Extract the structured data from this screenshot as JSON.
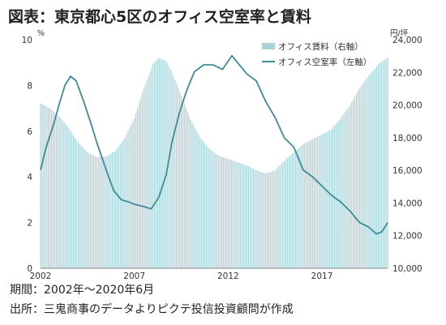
{
  "title": "図表：東京都心5区のオフィス空室率と賃料",
  "footer": {
    "period": "期間：2002年～2020年6月",
    "source": "出所：三鬼商事のデータよりピクテ投信投資顧問が作成"
  },
  "colors": {
    "rent_bars": "#a9d2d8",
    "vacancy_line": "#3e8c98",
    "axis": "#888888"
  },
  "chart_data": {
    "type": "bar+line",
    "left_axis": {
      "unit": "%",
      "ylim": [
        0,
        10
      ],
      "ticks": [
        0,
        2,
        4,
        6,
        8,
        10
      ]
    },
    "right_axis": {
      "unit": "円/坪",
      "ylim": [
        10000,
        24000
      ],
      "ticks": [
        "10,000",
        "12,000",
        "14,000",
        "16,000",
        "18,000",
        "20,000",
        "22,000",
        "24,000"
      ],
      "tick_values": [
        10000,
        12000,
        14000,
        16000,
        18000,
        20000,
        22000,
        24000
      ]
    },
    "x_ticks": [
      "2002",
      "2007",
      "2012",
      "2017"
    ],
    "x_tick_values": [
      2002,
      2007,
      2012,
      2017
    ],
    "xlim": [
      2002,
      2020.5
    ],
    "legend": "top-right",
    "series": [
      {
        "name": "オフィス賃料（右軸）",
        "kind": "bar",
        "axis": "right",
        "points": [
          [
            2002.0,
            20100
          ],
          [
            2002.5,
            19800
          ],
          [
            2003.0,
            19300
          ],
          [
            2003.5,
            18600
          ],
          [
            2004.0,
            17700
          ],
          [
            2004.5,
            17100
          ],
          [
            2005.0,
            16800
          ],
          [
            2005.5,
            16850
          ],
          [
            2006.0,
            17200
          ],
          [
            2006.5,
            18000
          ],
          [
            2007.0,
            19200
          ],
          [
            2007.5,
            21000
          ],
          [
            2008.0,
            22500
          ],
          [
            2008.3,
            22900
          ],
          [
            2008.7,
            22700
          ],
          [
            2009.0,
            22000
          ],
          [
            2009.5,
            20600
          ],
          [
            2010.0,
            19100
          ],
          [
            2010.5,
            18000
          ],
          [
            2011.0,
            17300
          ],
          [
            2011.5,
            16900
          ],
          [
            2012.0,
            16700
          ],
          [
            2012.5,
            16500
          ],
          [
            2013.0,
            16300
          ],
          [
            2013.5,
            16000
          ],
          [
            2014.0,
            15800
          ],
          [
            2014.5,
            16000
          ],
          [
            2015.0,
            16600
          ],
          [
            2015.5,
            17100
          ],
          [
            2016.0,
            17600
          ],
          [
            2016.5,
            17900
          ],
          [
            2017.0,
            18200
          ],
          [
            2017.5,
            18500
          ],
          [
            2018.0,
            19200
          ],
          [
            2018.5,
            20000
          ],
          [
            2019.0,
            21000
          ],
          [
            2019.5,
            21800
          ],
          [
            2020.0,
            22500
          ],
          [
            2020.5,
            22900
          ]
        ]
      },
      {
        "name": "オフィス空室率（左軸）",
        "kind": "line",
        "axis": "left",
        "points": [
          [
            2002.0,
            4.3
          ],
          [
            2002.3,
            5.3
          ],
          [
            2002.7,
            6.3
          ],
          [
            2003.0,
            7.2
          ],
          [
            2003.3,
            8.0
          ],
          [
            2003.6,
            8.4
          ],
          [
            2003.9,
            8.2
          ],
          [
            2004.3,
            7.3
          ],
          [
            2004.7,
            6.3
          ],
          [
            2005.0,
            5.5
          ],
          [
            2005.5,
            4.3
          ],
          [
            2005.9,
            3.4
          ],
          [
            2006.3,
            3.0
          ],
          [
            2006.7,
            2.9
          ],
          [
            2007.0,
            2.8
          ],
          [
            2007.5,
            2.7
          ],
          [
            2007.9,
            2.6
          ],
          [
            2008.3,
            3.1
          ],
          [
            2008.7,
            4.1
          ],
          [
            2009.0,
            5.5
          ],
          [
            2009.4,
            6.8
          ],
          [
            2009.8,
            7.8
          ],
          [
            2010.2,
            8.6
          ],
          [
            2010.7,
            8.9
          ],
          [
            2011.2,
            8.9
          ],
          [
            2011.7,
            8.7
          ],
          [
            2012.2,
            9.3
          ],
          [
            2012.6,
            8.9
          ],
          [
            2013.0,
            8.5
          ],
          [
            2013.5,
            8.2
          ],
          [
            2014.0,
            7.3
          ],
          [
            2014.5,
            6.6
          ],
          [
            2015.0,
            5.7
          ],
          [
            2015.5,
            5.3
          ],
          [
            2016.0,
            4.3
          ],
          [
            2016.5,
            4.0
          ],
          [
            2017.0,
            3.6
          ],
          [
            2017.5,
            3.2
          ],
          [
            2018.0,
            2.9
          ],
          [
            2018.5,
            2.5
          ],
          [
            2019.0,
            2.0
          ],
          [
            2019.5,
            1.8
          ],
          [
            2019.9,
            1.5
          ],
          [
            2020.2,
            1.6
          ],
          [
            2020.5,
            2.0
          ]
        ]
      }
    ]
  }
}
